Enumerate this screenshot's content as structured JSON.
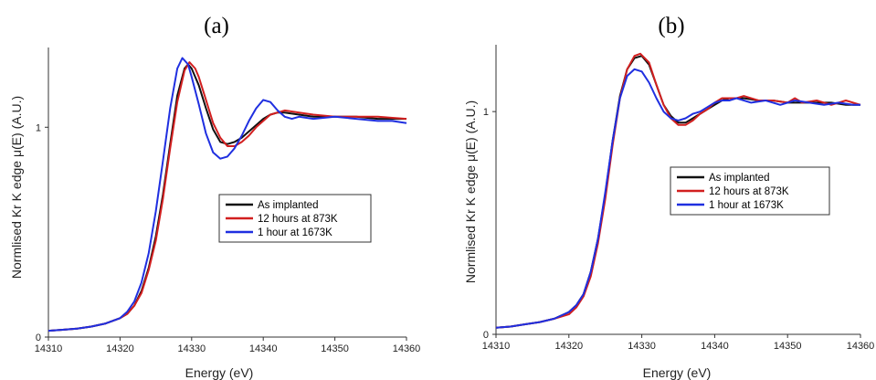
{
  "chart_data": [
    {
      "type": "line",
      "panel_label": "(a)",
      "xlabel": "Energy (eV)",
      "ylabel": "Normlised Kr K edge μ(E) (A.U.)",
      "xlim": [
        14310,
        14360
      ],
      "ylim": [
        0,
        1.38
      ],
      "xticks": [
        14310,
        14320,
        14330,
        14340,
        14350,
        14360
      ],
      "yticks": [
        0,
        1
      ],
      "legend_position": "center-right",
      "series": [
        {
          "name": "As implanted",
          "color": "#111111",
          "x": [
            14310,
            14312,
            14314,
            14316,
            14318,
            14320,
            14321,
            14322,
            14323,
            14324,
            14325,
            14326,
            14327,
            14328,
            14329,
            14329.5,
            14330,
            14331,
            14332,
            14333,
            14334,
            14335,
            14336,
            14337,
            14338,
            14339,
            14340,
            14341,
            14342,
            14343,
            14345,
            14347,
            14350,
            14353,
            14356,
            14360
          ],
          "y": [
            0.03,
            0.035,
            0.04,
            0.05,
            0.065,
            0.09,
            0.11,
            0.15,
            0.22,
            0.33,
            0.48,
            0.68,
            0.92,
            1.15,
            1.28,
            1.3,
            1.28,
            1.2,
            1.09,
            0.99,
            0.93,
            0.92,
            0.93,
            0.95,
            0.98,
            1.01,
            1.04,
            1.06,
            1.07,
            1.07,
            1.06,
            1.05,
            1.05,
            1.05,
            1.04,
            1.04
          ]
        },
        {
          "name": "12 hours at 873K",
          "color": "#d21f1f",
          "x": [
            14310,
            14312,
            14314,
            14316,
            14318,
            14320,
            14321,
            14322,
            14323,
            14324,
            14325,
            14326,
            14327,
            14328,
            14329,
            14329.7,
            14330.5,
            14331,
            14332,
            14333,
            14334,
            14335,
            14336,
            14337,
            14338,
            14339,
            14340,
            14341,
            14342,
            14343,
            14345,
            14347,
            14350,
            14353,
            14356,
            14360
          ],
          "y": [
            0.03,
            0.035,
            0.04,
            0.05,
            0.065,
            0.09,
            0.11,
            0.15,
            0.21,
            0.32,
            0.46,
            0.66,
            0.9,
            1.12,
            1.27,
            1.31,
            1.28,
            1.24,
            1.13,
            1.02,
            0.95,
            0.91,
            0.91,
            0.93,
            0.96,
            1.0,
            1.03,
            1.06,
            1.07,
            1.08,
            1.07,
            1.06,
            1.05,
            1.05,
            1.05,
            1.04
          ]
        },
        {
          "name": "1 hour at 1673K",
          "color": "#1f2fe0",
          "x": [
            14310,
            14312,
            14314,
            14316,
            14318,
            14320,
            14321,
            14322,
            14323,
            14324,
            14325,
            14326,
            14327,
            14328,
            14328.7,
            14329.5,
            14330,
            14331,
            14332,
            14333,
            14334,
            14335,
            14336,
            14337,
            14338,
            14339,
            14340,
            14341,
            14342,
            14343,
            14344,
            14345,
            14347,
            14350,
            14353,
            14356,
            14358,
            14360
          ],
          "y": [
            0.03,
            0.035,
            0.04,
            0.05,
            0.065,
            0.09,
            0.12,
            0.17,
            0.26,
            0.4,
            0.6,
            0.84,
            1.09,
            1.28,
            1.33,
            1.3,
            1.24,
            1.11,
            0.97,
            0.88,
            0.85,
            0.86,
            0.9,
            0.96,
            1.03,
            1.09,
            1.13,
            1.12,
            1.08,
            1.05,
            1.04,
            1.05,
            1.04,
            1.05,
            1.04,
            1.03,
            1.03,
            1.02
          ]
        }
      ]
    },
    {
      "type": "line",
      "panel_label": "(b)",
      "xlabel": "Energy (eV)",
      "ylabel": "Normlised Kr K edge μ(E) (A.U.)",
      "xlim": [
        14310,
        14360
      ],
      "ylim": [
        0,
        1.3
      ],
      "xticks": [
        14310,
        14320,
        14330,
        14340,
        14350,
        14360
      ],
      "yticks": [
        0,
        1
      ],
      "legend_position": "center-right",
      "series": [
        {
          "name": "As implanted",
          "color": "#111111",
          "x": [
            14310,
            14312,
            14314,
            14316,
            14318,
            14320,
            14321,
            14322,
            14323,
            14324,
            14325,
            14326,
            14327,
            14328,
            14329,
            14330,
            14331,
            14332,
            14333,
            14334,
            14335,
            14336,
            14337,
            14338,
            14339,
            14340,
            14341,
            14342,
            14344,
            14346,
            14348,
            14350,
            14353,
            14356,
            14358,
            14360
          ],
          "y": [
            0.03,
            0.035,
            0.045,
            0.055,
            0.07,
            0.1,
            0.13,
            0.18,
            0.28,
            0.43,
            0.63,
            0.87,
            1.07,
            1.19,
            1.24,
            1.25,
            1.21,
            1.12,
            1.03,
            0.98,
            0.95,
            0.95,
            0.97,
            0.99,
            1.01,
            1.03,
            1.05,
            1.06,
            1.06,
            1.05,
            1.05,
            1.04,
            1.04,
            1.04,
            1.03,
            1.03
          ]
        },
        {
          "name": "12 hours at 873K",
          "color": "#d21f1f",
          "x": [
            14310,
            14312,
            14314,
            14316,
            14318,
            14320,
            14321,
            14322,
            14323,
            14324,
            14325,
            14326,
            14327,
            14328,
            14329,
            14329.8,
            14331,
            14332,
            14333,
            14334,
            14335,
            14336,
            14337,
            14338,
            14339,
            14340,
            14341,
            14342,
            14343,
            14344,
            14346,
            14348,
            14350,
            14351,
            14352,
            14354,
            14356,
            14358,
            14360
          ],
          "y": [
            0.03,
            0.035,
            0.045,
            0.055,
            0.07,
            0.09,
            0.12,
            0.17,
            0.26,
            0.41,
            0.61,
            0.85,
            1.06,
            1.19,
            1.25,
            1.26,
            1.22,
            1.12,
            1.03,
            0.97,
            0.94,
            0.94,
            0.96,
            0.99,
            1.01,
            1.04,
            1.06,
            1.06,
            1.06,
            1.07,
            1.05,
            1.05,
            1.04,
            1.06,
            1.04,
            1.05,
            1.03,
            1.05,
            1.03
          ]
        },
        {
          "name": "1 hour at 1673K",
          "color": "#1f2fe0",
          "x": [
            14310,
            14312,
            14314,
            14316,
            14318,
            14320,
            14321,
            14322,
            14323,
            14324,
            14325,
            14326,
            14327,
            14328,
            14329,
            14330,
            14331,
            14332,
            14333,
            14334,
            14335,
            14336,
            14337,
            14338,
            14339,
            14340,
            14341,
            14342,
            14343,
            14345,
            14347,
            14349,
            14351,
            14353,
            14355,
            14357,
            14359,
            14360
          ],
          "y": [
            0.03,
            0.035,
            0.045,
            0.055,
            0.07,
            0.1,
            0.13,
            0.18,
            0.28,
            0.43,
            0.64,
            0.87,
            1.06,
            1.16,
            1.19,
            1.18,
            1.13,
            1.06,
            1.0,
            0.97,
            0.96,
            0.97,
            0.99,
            1.0,
            1.02,
            1.04,
            1.05,
            1.05,
            1.06,
            1.04,
            1.05,
            1.03,
            1.05,
            1.04,
            1.03,
            1.04,
            1.03,
            1.03
          ]
        }
      ]
    }
  ]
}
